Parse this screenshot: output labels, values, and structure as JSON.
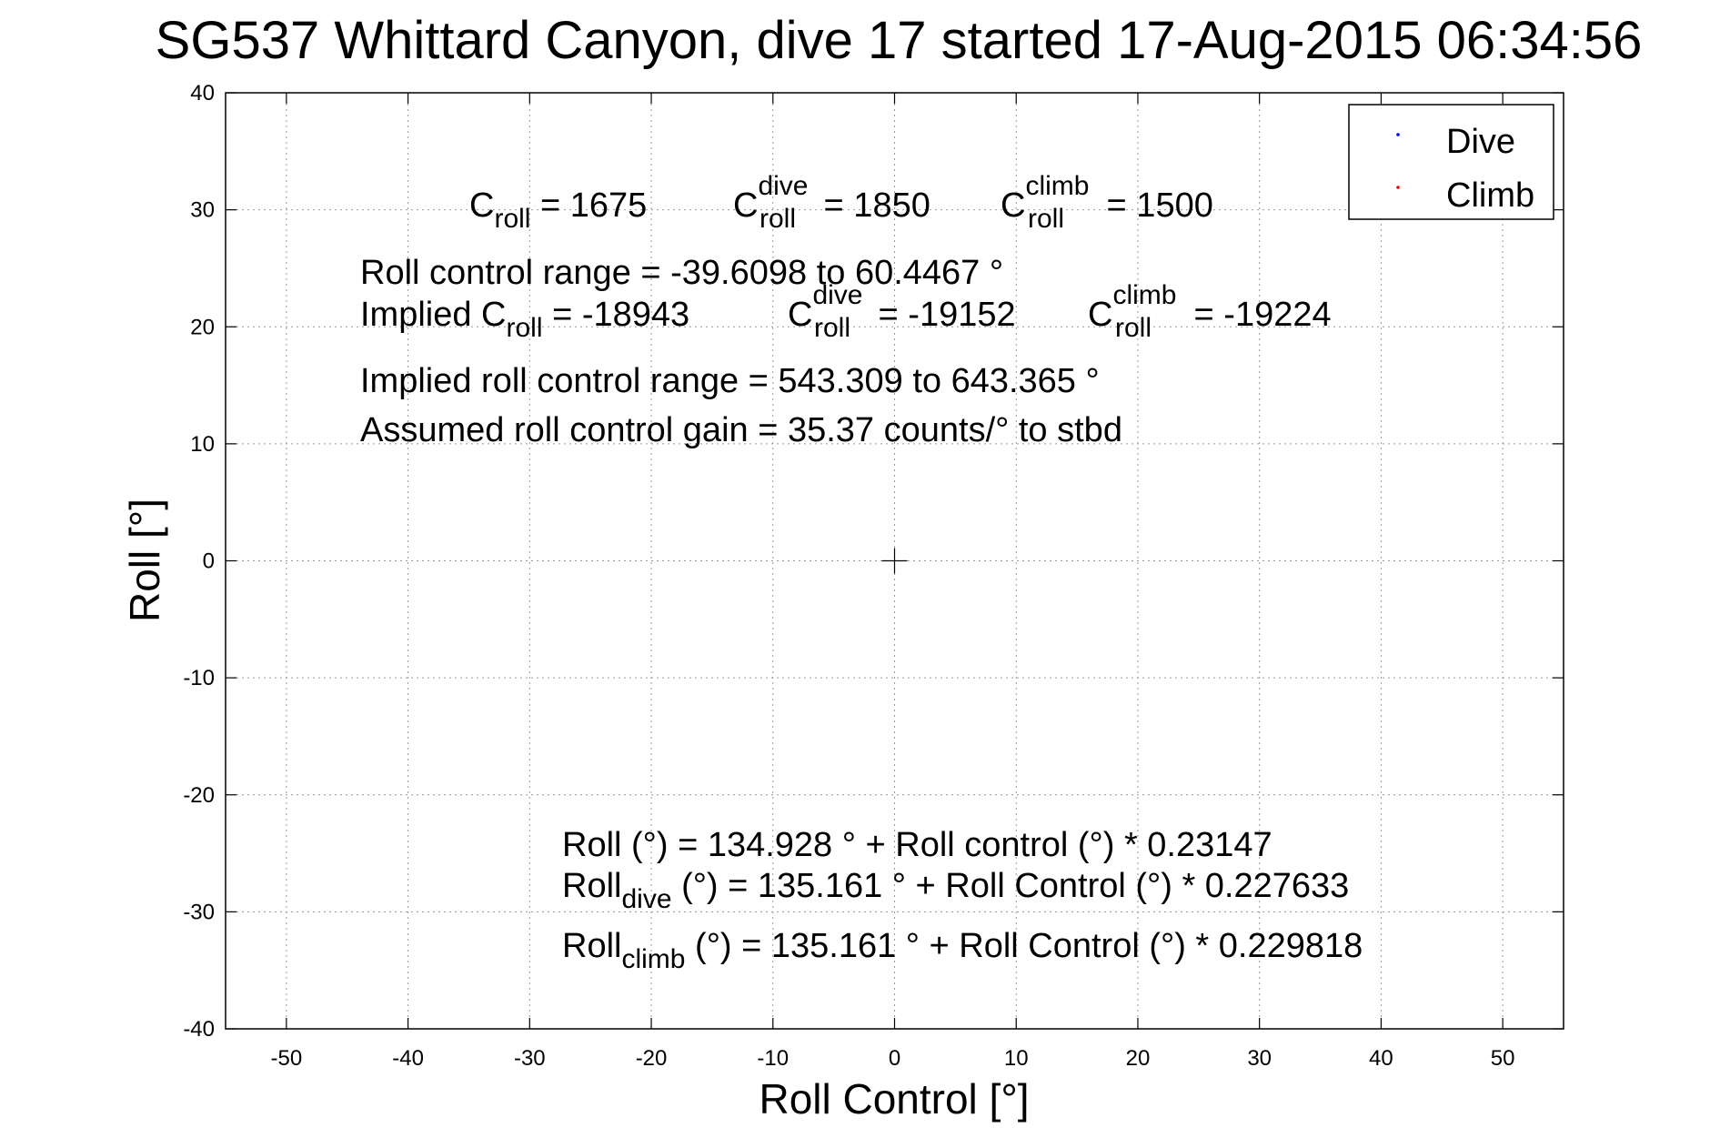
{
  "chart_data": {
    "type": "scatter",
    "title": "SG537 Whittard Canyon, dive 17 started 17-Aug-2015 06:34:56",
    "xlabel": "Roll Control [°]",
    "ylabel": "Roll [°]",
    "xlim": [
      -55,
      55
    ],
    "ylim": [
      -40,
      40
    ],
    "xticks": [
      -50,
      -40,
      -30,
      -20,
      -10,
      0,
      10,
      20,
      30,
      40,
      50
    ],
    "yticks": [
      -40,
      -30,
      -20,
      -10,
      0,
      10,
      20,
      30,
      40
    ],
    "grid": true,
    "legend_position": "top-right",
    "legend": [
      {
        "name": "Dive",
        "color": "#0000ff"
      },
      {
        "name": "Climb",
        "color": "#ff0000"
      }
    ],
    "series": [
      {
        "name": "Dive",
        "color": "#0000ff",
        "points": []
      },
      {
        "name": "Climb",
        "color": "#ff0000",
        "points": []
      }
    ],
    "crosshair": [
      0,
      0
    ],
    "annotations": {
      "c_roll": {
        "base": "C",
        "sub": "roll",
        "value": " = 1675"
      },
      "c_roll_dive": {
        "base": "C",
        "sup": "dive",
        "sub": "roll",
        "value": " = 1850"
      },
      "c_roll_climb": {
        "base": "C",
        "sup": "climb",
        "sub": "roll",
        "value": " = 1500"
      },
      "roll_control_range": "Roll control range = -39.6098 to 60.4467 °",
      "implied_c_roll": {
        "prefix": "Implied C",
        "sub": "roll",
        "value": " = -18943"
      },
      "implied_c_roll_dive": {
        "base": "C",
        "sup": "dive",
        "sub": "roll",
        "value": " = -19152"
      },
      "implied_c_roll_climb": {
        "base": "C",
        "sup": "climb",
        "sub": "roll",
        "value": " = -19224"
      },
      "implied_roll_control_range": "Implied roll control range = 543.309 to 643.365 °",
      "assumed_gain": "Assumed roll control gain = 35.37 counts/° to stbd",
      "fit_all": "Roll (°) = 134.928 ° + Roll control (°) * 0.23147",
      "fit_dive": {
        "base": "Roll",
        "sub": "dive",
        "value": " (°) = 135.161 ° + Roll Control (°) * 0.227633"
      },
      "fit_climb": {
        "base": "Roll",
        "sub": "climb",
        "value": " (°) = 135.161 ° + Roll Control (°) * 0.229818"
      }
    }
  }
}
